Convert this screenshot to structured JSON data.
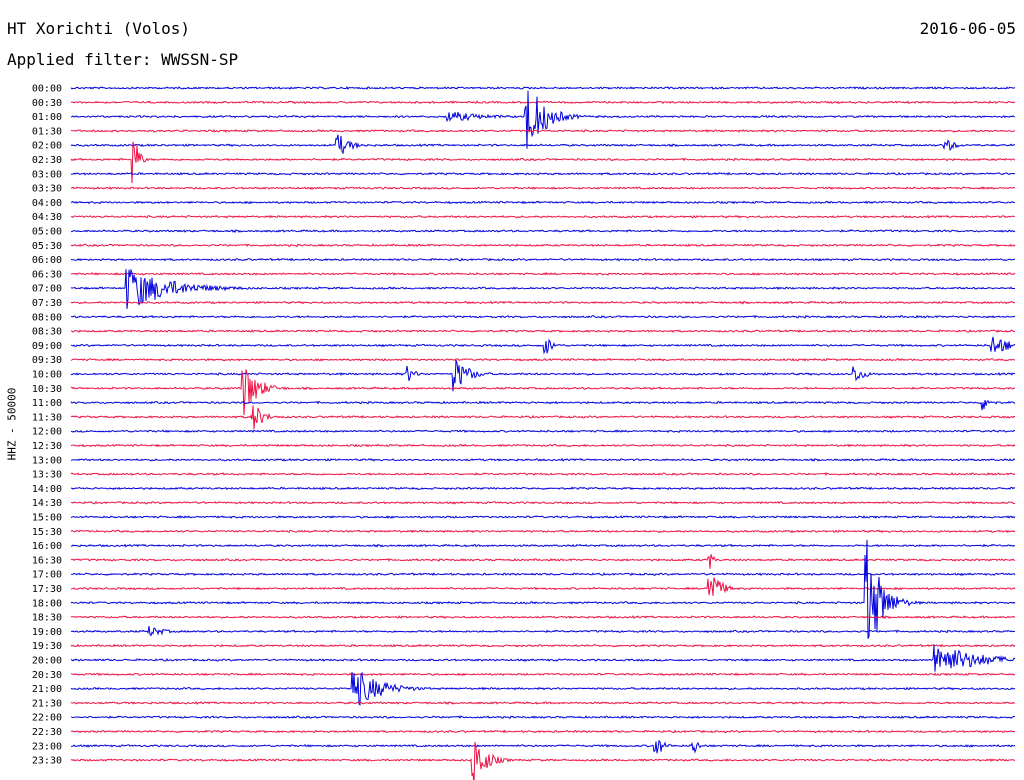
{
  "header": {
    "station": "HT Xorichti (Volos)",
    "date": "2016-06-05",
    "filter_label": "Applied filter: WWSSN-SP"
  },
  "colors": {
    "even_rows": "#0000dd",
    "odd_rows": "#ee1144",
    "background": "#ffffff"
  },
  "chart_data": {
    "type": "line",
    "title": "HT Xorichti (Volos)",
    "subtitle": "Applied filter: WWSSN-SP",
    "ylabel": "HHZ - 50000",
    "xlabel": "",
    "row_labels": [
      "00:00",
      "00:30",
      "01:00",
      "01:30",
      "02:00",
      "02:30",
      "03:00",
      "03:30",
      "04:00",
      "04:30",
      "05:00",
      "05:30",
      "06:00",
      "06:30",
      "07:00",
      "07:30",
      "08:00",
      "08:30",
      "09:00",
      "09:30",
      "10:00",
      "10:30",
      "11:00",
      "11:30",
      "12:00",
      "12:30",
      "13:00",
      "13:30",
      "14:00",
      "14:30",
      "15:00",
      "15:30",
      "16:00",
      "16:30",
      "17:00",
      "17:30",
      "18:00",
      "18:30",
      "19:00",
      "19:30",
      "20:00",
      "20:30",
      "21:00",
      "21:30",
      "22:00",
      "22:30",
      "23:00",
      "23:30"
    ],
    "row_minutes": 30,
    "grid": false,
    "events": [
      {
        "row": 2,
        "minute": 14.5,
        "amp": 38,
        "dur": 1.5
      },
      {
        "row": 2,
        "minute": 12,
        "amp": 6,
        "dur": 3
      },
      {
        "row": 4,
        "minute": 8.5,
        "amp": 12,
        "dur": 1
      },
      {
        "row": 4,
        "minute": 27.8,
        "amp": 8,
        "dur": 0.8
      },
      {
        "row": 5,
        "minute": 2.0,
        "amp": 30,
        "dur": 0.4
      },
      {
        "row": 14,
        "minute": 1.8,
        "amp": 24,
        "dur": 3.5
      },
      {
        "row": 18,
        "minute": 15.1,
        "amp": 10,
        "dur": 0.6
      },
      {
        "row": 18,
        "minute": 29.3,
        "amp": 12,
        "dur": 1.5
      },
      {
        "row": 20,
        "minute": 10.7,
        "amp": 9,
        "dur": 0.6
      },
      {
        "row": 20,
        "minute": 12.2,
        "amp": 18,
        "dur": 1.2
      },
      {
        "row": 20,
        "minute": 24.9,
        "amp": 10,
        "dur": 0.8
      },
      {
        "row": 21,
        "minute": 5.5,
        "amp": 28,
        "dur": 1.2
      },
      {
        "row": 22,
        "minute": 29.0,
        "amp": 9,
        "dur": 0.6
      },
      {
        "row": 23,
        "minute": 5.8,
        "amp": 16,
        "dur": 0.8
      },
      {
        "row": 33,
        "minute": 20.3,
        "amp": 10,
        "dur": 0.3
      },
      {
        "row": 35,
        "minute": 20.3,
        "amp": 24,
        "dur": 0.8
      },
      {
        "row": 36,
        "minute": 25.3,
        "amp": 65,
        "dur": 1.2
      },
      {
        "row": 38,
        "minute": 2.5,
        "amp": 6,
        "dur": 1.2
      },
      {
        "row": 40,
        "minute": 27.5,
        "amp": 18,
        "dur": 3.5
      },
      {
        "row": 42,
        "minute": 9.0,
        "amp": 22,
        "dur": 2.2
      },
      {
        "row": 42,
        "minute": 10.0,
        "amp": 8,
        "dur": 0.8
      },
      {
        "row": 46,
        "minute": 18.6,
        "amp": 12,
        "dur": 0.6
      },
      {
        "row": 46,
        "minute": 19.8,
        "amp": 10,
        "dur": 0.4
      },
      {
        "row": 47,
        "minute": 12.8,
        "amp": 30,
        "dur": 1.0
      }
    ]
  }
}
